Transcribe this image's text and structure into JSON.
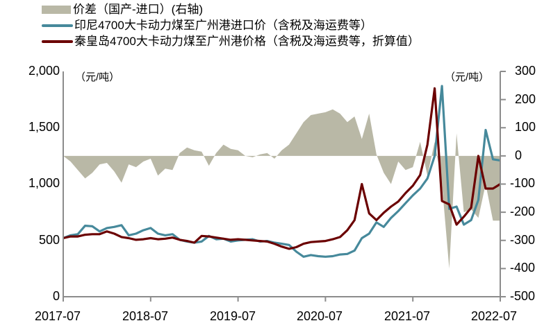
{
  "legend": {
    "items": [
      {
        "label": "价差（国产-进口）(右轴)",
        "type": "area",
        "color": "#b9b8a6"
      },
      {
        "label": "印尼4700大卡动力煤至广州港进口价（含税及海运费等）",
        "type": "line",
        "color": "#46899b"
      },
      {
        "label": "秦皇岛4700大卡动力煤至广州港价格（含税及海运费等，折算值）",
        "type": "line",
        "color": "#6b0000"
      }
    ]
  },
  "units": {
    "left": "（元/吨）",
    "right": "（元/吨）"
  },
  "axes": {
    "left_ticks": [
      "2,000",
      "1,500",
      "1,000",
      "500",
      "0"
    ],
    "right_ticks": [
      "300",
      "200",
      "100",
      "0",
      "-100",
      "-200",
      "-300",
      "-400",
      "-500"
    ],
    "x_ticks": [
      "2017-07",
      "2018-07",
      "2019-07",
      "2020-07",
      "2021-07",
      "2022-07"
    ]
  },
  "chart_data": {
    "type": "line",
    "title": "",
    "xlabel": "",
    "ylabel": "元/吨",
    "ylim": [
      0,
      2000
    ],
    "y2lim": [
      -500,
      300
    ],
    "grid": false,
    "legend_position": "top",
    "categories": [
      "2017-07",
      "2017-08",
      "2017-09",
      "2017-10",
      "2017-11",
      "2017-12",
      "2018-01",
      "2018-02",
      "2018-03",
      "2018-04",
      "2018-05",
      "2018-06",
      "2018-07",
      "2018-08",
      "2018-09",
      "2018-10",
      "2018-11",
      "2018-12",
      "2019-01",
      "2019-02",
      "2019-03",
      "2019-04",
      "2019-05",
      "2019-06",
      "2019-07",
      "2019-08",
      "2019-09",
      "2019-10",
      "2019-11",
      "2019-12",
      "2020-01",
      "2020-02",
      "2020-03",
      "2020-04",
      "2020-05",
      "2020-06",
      "2020-07",
      "2020-08",
      "2020-09",
      "2020-10",
      "2020-11",
      "2020-12",
      "2021-01",
      "2021-02",
      "2021-03",
      "2021-04",
      "2021-05",
      "2021-06",
      "2021-07",
      "2021-08",
      "2021-09",
      "2021-10",
      "2021-11",
      "2021-12",
      "2022-01",
      "2022-02",
      "2022-03",
      "2022-04",
      "2022-05",
      "2022-06",
      "2022-07"
    ],
    "series": [
      {
        "name": "印尼4700大卡动力煤至广州港进口价（含税及海运费等）",
        "axis": "left",
        "color": "#46899b",
        "values": [
          520,
          545,
          555,
          630,
          625,
          580,
          610,
          620,
          635,
          545,
          560,
          590,
          610,
          560,
          545,
          555,
          505,
          490,
          480,
          490,
          540,
          510,
          515,
          490,
          500,
          505,
          510,
          490,
          495,
          480,
          470,
          460,
          400,
          355,
          370,
          360,
          355,
          360,
          375,
          380,
          410,
          520,
          560,
          660,
          620,
          700,
          760,
          830,
          900,
          960,
          1050,
          1250,
          1870,
          780,
          800,
          640,
          680,
          860,
          1480,
          1220,
          1210
        ]
      },
      {
        "name": "秦皇岛4700大卡动力煤至广州港价格（含税及海运费等，折算值）",
        "axis": "left",
        "color": "#6b0000",
        "values": [
          520,
          535,
          535,
          550,
          555,
          555,
          580,
          560,
          530,
          520,
          505,
          510,
          520,
          510,
          515,
          525,
          505,
          495,
          480,
          540,
          535,
          525,
          515,
          505,
          510,
          505,
          500,
          495,
          490,
          470,
          445,
          425,
          440,
          470,
          485,
          490,
          495,
          510,
          530,
          590,
          680,
          1000,
          740,
          680,
          745,
          800,
          845,
          920,
          985,
          1080,
          1350,
          1850,
          850,
          820,
          640,
          710,
          790,
          1250,
          960,
          960,
          1000
        ]
      },
      {
        "name": "价差（国产-进口）(右轴)",
        "axis": "right",
        "color": "#b9b8a6",
        "values": [
          0,
          -20,
          -50,
          -80,
          -60,
          -30,
          -25,
          -55,
          -95,
          -30,
          -40,
          -20,
          -10,
          -70,
          -45,
          -50,
          10,
          30,
          20,
          15,
          -35,
          10,
          40,
          25,
          20,
          0,
          -5,
          5,
          10,
          -10,
          20,
          40,
          80,
          120,
          145,
          150,
          155,
          165,
          150,
          120,
          140,
          60,
          150,
          5,
          -60,
          -100,
          -20,
          -50,
          -40,
          50,
          -70,
          50,
          -100,
          -400,
          80,
          -200,
          -190,
          -220,
          -100,
          -230,
          -230
        ]
      }
    ]
  }
}
